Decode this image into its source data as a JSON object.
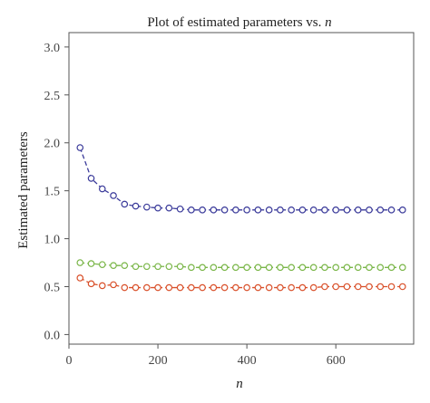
{
  "chart_data": {
    "type": "line",
    "title": "Plot of estimated parameters vs. ",
    "title_italic": "n",
    "xlabel": "n",
    "ylabel": "Estimated parameters",
    "xlim": [
      0,
      775
    ],
    "ylim": [
      -0.1,
      3.15
    ],
    "x_ticks": [
      0,
      200,
      400,
      600
    ],
    "y_ticks": [
      0.0,
      0.5,
      1.0,
      1.5,
      2.0,
      2.5,
      3.0
    ],
    "y_tick_labels": [
      "0.0",
      "0.5",
      "1.0",
      "1.5",
      "2.0",
      "2.5",
      "3.0"
    ],
    "grid": false,
    "x": [
      25,
      50,
      75,
      100,
      125,
      150,
      175,
      200,
      225,
      250,
      275,
      300,
      325,
      350,
      375,
      400,
      425,
      450,
      475,
      500,
      525,
      550,
      575,
      600,
      625,
      650,
      675,
      700,
      725,
      750
    ],
    "series": [
      {
        "color": "#3a3a9a",
        "values": [
          1.95,
          1.63,
          1.52,
          1.45,
          1.36,
          1.34,
          1.33,
          1.32,
          1.32,
          1.31,
          1.3,
          1.3,
          1.3,
          1.3,
          1.3,
          1.3,
          1.3,
          1.3,
          1.3,
          1.3,
          1.3,
          1.3,
          1.3,
          1.3,
          1.3,
          1.3,
          1.3,
          1.3,
          1.3,
          1.3
        ]
      },
      {
        "color": "#7ab648",
        "values": [
          0.75,
          0.74,
          0.73,
          0.72,
          0.72,
          0.71,
          0.71,
          0.71,
          0.71,
          0.71,
          0.7,
          0.7,
          0.7,
          0.7,
          0.7,
          0.7,
          0.7,
          0.7,
          0.7,
          0.7,
          0.7,
          0.7,
          0.7,
          0.7,
          0.7,
          0.7,
          0.7,
          0.7,
          0.7,
          0.7
        ]
      },
      {
        "color": "#d9502a",
        "values": [
          0.59,
          0.53,
          0.51,
          0.52,
          0.49,
          0.49,
          0.49,
          0.49,
          0.49,
          0.49,
          0.49,
          0.49,
          0.49,
          0.49,
          0.49,
          0.49,
          0.49,
          0.49,
          0.49,
          0.49,
          0.49,
          0.49,
          0.5,
          0.5,
          0.5,
          0.5,
          0.5,
          0.5,
          0.5,
          0.5
        ]
      }
    ]
  }
}
